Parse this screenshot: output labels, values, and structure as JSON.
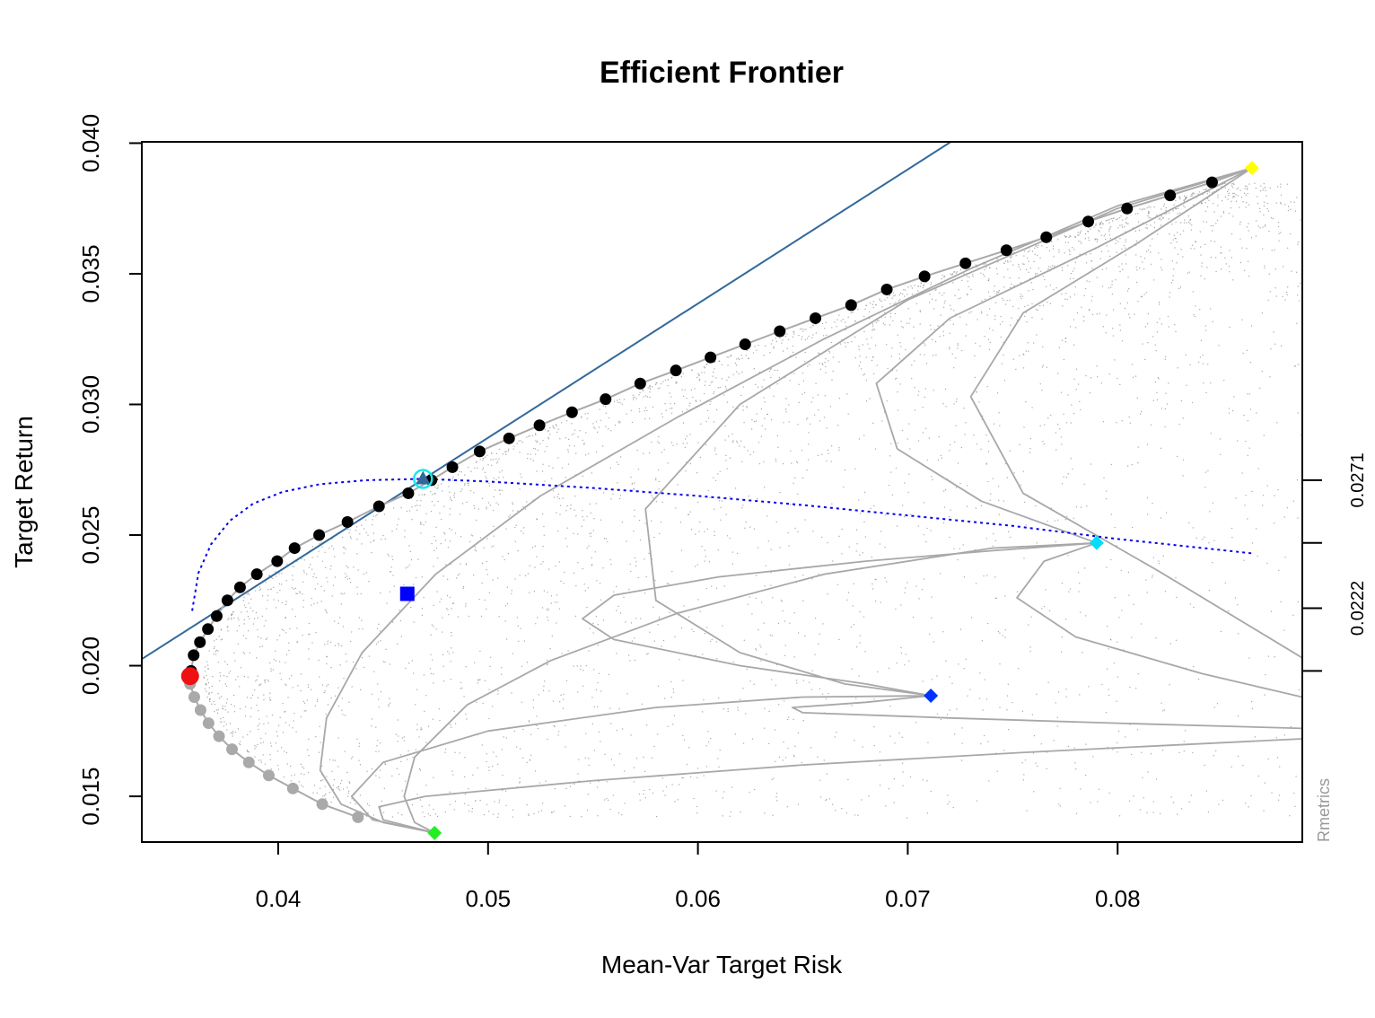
{
  "chart_data": {
    "type": "scatter",
    "title": "Efficient Frontier",
    "xlabel": "Mean-Var Target Risk",
    "ylabel": "Target Return",
    "xlim": [
      0.0335,
      0.0888
    ],
    "ylim": [
      0.01325,
      0.04005
    ],
    "x_ticks": [
      0.04,
      0.05,
      0.06,
      0.07,
      0.08
    ],
    "x_tick_labels": [
      "0.04",
      "0.05",
      "0.06",
      "0.07",
      "0.08"
    ],
    "y_ticks": [
      0.015,
      0.02,
      0.025,
      0.03,
      0.035,
      0.04
    ],
    "y_tick_labels": [
      "0.015",
      "0.020",
      "0.025",
      "0.030",
      "0.035",
      "0.040"
    ],
    "right_axis_ticks": [
      0.0198,
      0.0222,
      0.0247,
      0.0271
    ],
    "right_axis_labels": [
      {
        "value": 0.0222,
        "label": "0.0222"
      },
      {
        "value": 0.0271,
        "label": "0.0271"
      }
    ],
    "credit": "Rmetrics",
    "grid": false,
    "colors": {
      "frontier_efficient": "#000000",
      "frontier_inefficient": "#a9a9a9",
      "min_variance": "#ee1111",
      "tangency_line": "#33689b",
      "tangency_point": "#19e8e8",
      "sharpe_ratio_line": "#0000ee",
      "equal_weights": "#0000ff",
      "single_asset_1": "#ffff00",
      "single_asset_2": "#00ddff",
      "single_asset_3": "#0033ff",
      "single_asset_4": "#22ee22",
      "monte_carlo": "#888888",
      "two_asset_curves": "#a8a8a8"
    },
    "efficient_frontier": [
      [
        0.03585,
        0.0198
      ],
      [
        0.03597,
        0.0204
      ],
      [
        0.03627,
        0.0209
      ],
      [
        0.03665,
        0.0214
      ],
      [
        0.03707,
        0.0219
      ],
      [
        0.03758,
        0.0225
      ],
      [
        0.03818,
        0.023
      ],
      [
        0.03898,
        0.0235
      ],
      [
        0.03995,
        0.024
      ],
      [
        0.04078,
        0.0245
      ],
      [
        0.04195,
        0.025
      ],
      [
        0.0433,
        0.0255
      ],
      [
        0.0448,
        0.0261
      ],
      [
        0.0462,
        0.0266
      ],
      [
        0.0473,
        0.0271
      ],
      [
        0.0483,
        0.0276
      ],
      [
        0.0496,
        0.0282
      ],
      [
        0.051,
        0.0287
      ],
      [
        0.05245,
        0.0292
      ],
      [
        0.054,
        0.0297
      ],
      [
        0.0556,
        0.0302
      ],
      [
        0.05725,
        0.0308
      ],
      [
        0.05895,
        0.0313
      ],
      [
        0.0606,
        0.0318
      ],
      [
        0.06225,
        0.0323
      ],
      [
        0.0639,
        0.0328
      ],
      [
        0.0656,
        0.0333
      ],
      [
        0.0673,
        0.0338
      ],
      [
        0.069,
        0.0344
      ],
      [
        0.0708,
        0.0349
      ],
      [
        0.07275,
        0.0354
      ],
      [
        0.0747,
        0.0359
      ],
      [
        0.0766,
        0.0364
      ],
      [
        0.0786,
        0.037
      ],
      [
        0.08045,
        0.0375
      ],
      [
        0.0825,
        0.038
      ],
      [
        0.0845,
        0.0385
      ]
    ],
    "inefficient_frontier": [
      [
        0.0358,
        0.0193
      ],
      [
        0.036,
        0.0188
      ],
      [
        0.0363,
        0.0183
      ],
      [
        0.03668,
        0.0178
      ],
      [
        0.03718,
        0.0173
      ],
      [
        0.0378,
        0.0168
      ],
      [
        0.0386,
        0.0163
      ],
      [
        0.03955,
        0.0158
      ],
      [
        0.0407,
        0.0153
      ],
      [
        0.0421,
        0.0147
      ],
      [
        0.0438,
        0.0142
      ]
    ],
    "min_variance_portfolio": [
      0.0358,
      0.0196
    ],
    "tangency_portfolio": [
      0.0469,
      0.02715
    ],
    "tangency_line": {
      "intercept": 0.00305,
      "slope": 0.5135
    },
    "equal_weights_portfolio": [
      0.04615,
      0.02275
    ],
    "single_assets": [
      [
        0.0864,
        0.03905
      ],
      [
        0.079,
        0.0247
      ],
      [
        0.0711,
        0.01885
      ],
      [
        0.04745,
        0.0136
      ]
    ],
    "sharpe_ratio_curve": [
      [
        0.0359,
        0.0221
      ],
      [
        0.0362,
        0.02355
      ],
      [
        0.0368,
        0.02465
      ],
      [
        0.0377,
        0.02555
      ],
      [
        0.0388,
        0.0262
      ],
      [
        0.0402,
        0.02665
      ],
      [
        0.042,
        0.02695
      ],
      [
        0.0442,
        0.0271
      ],
      [
        0.0469,
        0.02715
      ],
      [
        0.05,
        0.02705
      ],
      [
        0.055,
        0.0268
      ],
      [
        0.06,
        0.0265
      ],
      [
        0.065,
        0.02615
      ],
      [
        0.07,
        0.02575
      ],
      [
        0.075,
        0.02535
      ],
      [
        0.08,
        0.02485
      ],
      [
        0.0835,
        0.02455
      ],
      [
        0.0864,
        0.0243
      ]
    ],
    "two_asset_curves": [
      [
        [
          0.04745,
          0.0136
        ],
        [
          0.045,
          0.014
        ],
        [
          0.043,
          0.0147
        ],
        [
          0.042,
          0.016
        ],
        [
          0.0423,
          0.018
        ],
        [
          0.044,
          0.0205
        ],
        [
          0.0475,
          0.0235
        ],
        [
          0.0525,
          0.0265
        ],
        [
          0.059,
          0.0295
        ],
        [
          0.066,
          0.0325
        ],
        [
          0.073,
          0.0352
        ],
        [
          0.08,
          0.0376
        ],
        [
          0.0864,
          0.03905
        ]
      ],
      [
        [
          0.04745,
          0.0136
        ],
        [
          0.0465,
          0.014
        ],
        [
          0.046,
          0.015
        ],
        [
          0.0465,
          0.0165
        ],
        [
          0.049,
          0.0185
        ],
        [
          0.053,
          0.0202
        ],
        [
          0.059,
          0.022
        ],
        [
          0.066,
          0.0235
        ],
        [
          0.074,
          0.0245
        ],
        [
          0.079,
          0.0247
        ]
      ],
      [
        [
          0.04745,
          0.0136
        ],
        [
          0.0445,
          0.0141
        ],
        [
          0.0435,
          0.015
        ],
        [
          0.045,
          0.0163
        ],
        [
          0.05,
          0.0175
        ],
        [
          0.058,
          0.0184
        ],
        [
          0.065,
          0.0188
        ],
        [
          0.0711,
          0.01885
        ]
      ],
      [
        [
          0.0864,
          0.03905
        ],
        [
          0.08,
          0.0375
        ],
        [
          0.07,
          0.034
        ],
        [
          0.062,
          0.03
        ],
        [
          0.0575,
          0.026
        ],
        [
          0.058,
          0.0225
        ],
        [
          0.062,
          0.0205
        ],
        [
          0.067,
          0.0193
        ],
        [
          0.0711,
          0.01885
        ]
      ],
      [
        [
          0.0864,
          0.03905
        ],
        [
          0.079,
          0.036
        ],
        [
          0.072,
          0.0333
        ],
        [
          0.0685,
          0.0308
        ],
        [
          0.0695,
          0.0283
        ],
        [
          0.0735,
          0.0263
        ],
        [
          0.079,
          0.0247
        ]
      ],
      [
        [
          0.0864,
          0.03905
        ],
        [
          0.081,
          0.0362
        ],
        [
          0.0755,
          0.0335
        ],
        [
          0.073,
          0.0303
        ],
        [
          0.0755,
          0.0266
        ],
        [
          0.082,
          0.0236
        ],
        [
          0.0888,
          0.0203
        ]
      ],
      [
        [
          0.079,
          0.0247
        ],
        [
          0.074,
          0.0244
        ],
        [
          0.068,
          0.024
        ],
        [
          0.061,
          0.0234
        ],
        [
          0.056,
          0.0227
        ],
        [
          0.0545,
          0.0218
        ],
        [
          0.056,
          0.021
        ],
        [
          0.062,
          0.02
        ],
        [
          0.068,
          0.0193
        ],
        [
          0.0711,
          0.01885
        ]
      ],
      [
        [
          0.079,
          0.0247
        ],
        [
          0.0765,
          0.024
        ],
        [
          0.0752,
          0.0226
        ],
        [
          0.078,
          0.0211
        ],
        [
          0.084,
          0.0197
        ],
        [
          0.0888,
          0.0188
        ]
      ],
      [
        [
          0.0711,
          0.01885
        ],
        [
          0.068,
          0.0186
        ],
        [
          0.0645,
          0.0184
        ],
        [
          0.065,
          0.0182
        ],
        [
          0.072,
          0.018
        ],
        [
          0.08,
          0.0178
        ],
        [
          0.0888,
          0.0176
        ]
      ],
      [
        [
          0.04745,
          0.0136
        ],
        [
          0.045,
          0.0141
        ],
        [
          0.0448,
          0.0146
        ],
        [
          0.047,
          0.015
        ],
        [
          0.055,
          0.0156
        ],
        [
          0.065,
          0.0162
        ],
        [
          0.076,
          0.0167
        ],
        [
          0.0888,
          0.0172
        ]
      ]
    ]
  }
}
